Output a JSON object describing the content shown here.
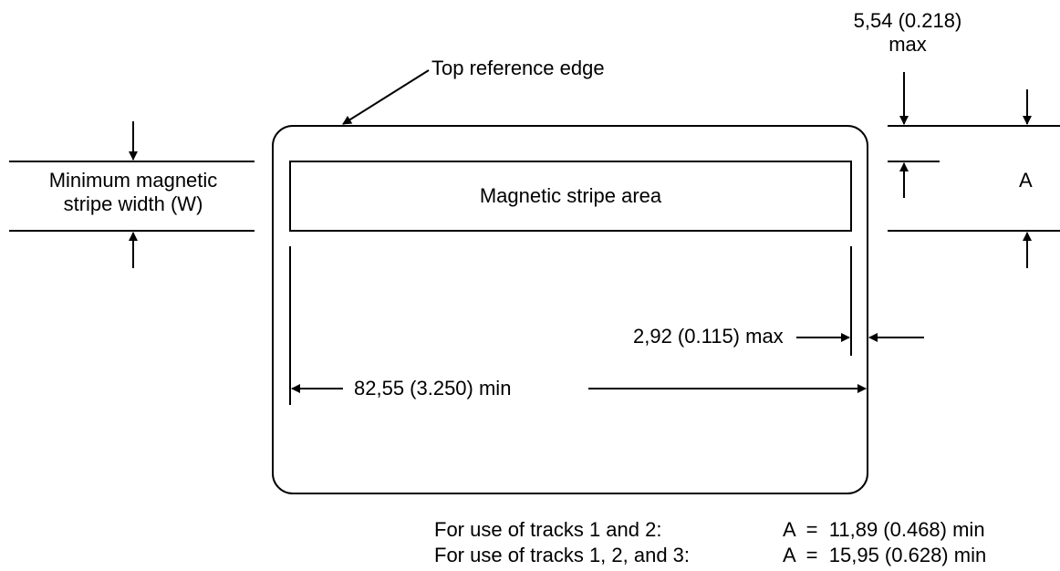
{
  "labels": {
    "top_reference_edge": "Top reference edge",
    "dim_554_line1": "5,54 (0.218)",
    "dim_554_line2": "max",
    "min_stripe_width_line1": "Minimum magnetic",
    "min_stripe_width_line2": "stripe width (W)",
    "stripe_area": "Magnetic stripe area",
    "a_label": "A",
    "dim_292": "2,92 (0.115) max",
    "dim_8255": "82,55 (3.250) min"
  },
  "notes": [
    {
      "condition": "For use of tracks 1 and 2:",
      "formula": "A  =  11,89 (0.468) min"
    },
    {
      "condition": "For use of tracks 1, 2, and 3:",
      "formula": "A  =  15,95 (0.628) min"
    }
  ],
  "colors": {
    "stroke": "#000000",
    "background": "#ffffff"
  }
}
